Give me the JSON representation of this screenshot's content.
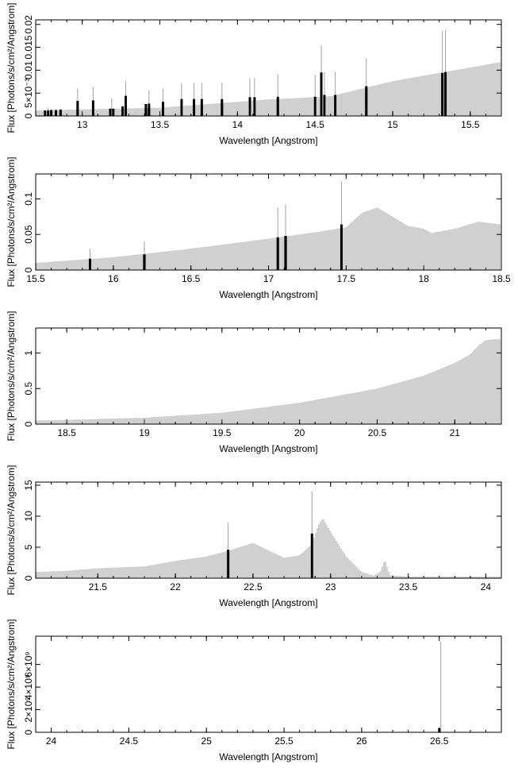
{
  "figure": {
    "style": {
      "sticks_color": "#a0a0a0",
      "lines_color": "#000000",
      "frame_color": "#000000",
      "background": "#ffffff"
    }
  },
  "chart_data": [
    {
      "type": "bar",
      "xlabel": "Wavelength [Angstrom]",
      "ylabel": "Flux [Photons/s/cm²/Angstrom]",
      "xlim": [
        12.7,
        15.7
      ],
      "ylim": [
        0,
        0.021
      ],
      "xticks": [
        "13",
        "13.5",
        "14",
        "14.5",
        "15",
        "15.5"
      ],
      "yticks": [
        "0",
        "5×10⁻³",
        "0.01",
        "0.015",
        "0.02"
      ],
      "continuum_points": [
        [
          12.7,
          0.0012
        ],
        [
          13.5,
          0.0018
        ],
        [
          14.2,
          0.0036
        ],
        [
          14.6,
          0.0043
        ],
        [
          15.0,
          0.0076
        ],
        [
          15.7,
          0.0118
        ]
      ],
      "lines": [
        [
          12.76,
          0.0012
        ],
        [
          12.78,
          0.0012
        ],
        [
          12.8,
          0.0013
        ],
        [
          12.83,
          0.0013
        ],
        [
          12.86,
          0.0014
        ],
        [
          12.97,
          0.0033
        ],
        [
          13.07,
          0.0034
        ],
        [
          13.18,
          0.0016
        ],
        [
          13.2,
          0.0016
        ],
        [
          13.26,
          0.0021
        ],
        [
          13.28,
          0.0044
        ],
        [
          13.41,
          0.0026
        ],
        [
          13.43,
          0.0027
        ],
        [
          13.52,
          0.0031
        ],
        [
          13.64,
          0.0037
        ],
        [
          13.72,
          0.0037
        ],
        [
          13.77,
          0.0037
        ],
        [
          13.9,
          0.0037
        ],
        [
          14.08,
          0.0041
        ],
        [
          14.11,
          0.0041
        ],
        [
          14.26,
          0.0042
        ],
        [
          14.5,
          0.0042
        ],
        [
          14.54,
          0.0095
        ],
        [
          14.56,
          0.0046
        ],
        [
          14.63,
          0.0046
        ],
        [
          14.83,
          0.0065
        ],
        [
          15.32,
          0.0094
        ],
        [
          15.34,
          0.0096
        ]
      ],
      "sticks": [
        [
          12.78,
          0.0018
        ],
        [
          12.97,
          0.006
        ],
        [
          13.07,
          0.0063
        ],
        [
          13.19,
          0.0038
        ],
        [
          13.28,
          0.0075
        ],
        [
          13.43,
          0.0056
        ],
        [
          13.52,
          0.006
        ],
        [
          13.64,
          0.0072
        ],
        [
          13.72,
          0.0073
        ],
        [
          13.77,
          0.0072
        ],
        [
          13.9,
          0.0073
        ],
        [
          14.08,
          0.0082
        ],
        [
          14.11,
          0.0083
        ],
        [
          14.26,
          0.0091
        ],
        [
          14.5,
          0.009
        ],
        [
          14.54,
          0.0155
        ],
        [
          14.56,
          0.0096
        ],
        [
          14.63,
          0.0097
        ],
        [
          14.83,
          0.0126
        ],
        [
          15.32,
          0.0186
        ],
        [
          15.34,
          0.0188
        ]
      ]
    },
    {
      "type": "bar",
      "xlabel": "Wavelength [Angstrom]",
      "ylabel": "Flux [Photons/s/cm²/Angstrom]",
      "xlim": [
        15.5,
        18.5
      ],
      "ylim": [
        0,
        0.135
      ],
      "xticks": [
        "15.5",
        "16",
        "16.5",
        "17",
        "17.5",
        "18",
        "18.5"
      ],
      "yticks": [
        "0",
        "0.05",
        "0.1"
      ],
      "continuum_points": [
        [
          15.5,
          0.01
        ],
        [
          16.0,
          0.018
        ],
        [
          16.5,
          0.03
        ],
        [
          17.0,
          0.044
        ],
        [
          17.3,
          0.053
        ],
        [
          17.5,
          0.06
        ],
        [
          17.6,
          0.08
        ],
        [
          17.7,
          0.088
        ],
        [
          17.8,
          0.075
        ],
        [
          17.9,
          0.062
        ],
        [
          18.0,
          0.058
        ],
        [
          18.05,
          0.052
        ],
        [
          18.2,
          0.058
        ],
        [
          18.35,
          0.068
        ],
        [
          18.5,
          0.064
        ]
      ],
      "lines": [
        [
          15.85,
          0.016
        ],
        [
          16.2,
          0.022
        ],
        [
          17.06,
          0.046
        ],
        [
          17.11,
          0.048
        ],
        [
          17.47,
          0.064
        ]
      ],
      "sticks": [
        [
          15.85,
          0.03
        ],
        [
          16.2,
          0.04
        ],
        [
          17.06,
          0.088
        ],
        [
          17.11,
          0.092
        ],
        [
          17.47,
          0.124
        ]
      ]
    },
    {
      "type": "bar",
      "xlabel": "Wavelength [Angstrom]",
      "ylabel": "Flux [Photons/s/cm²/Angstrom]",
      "xlim": [
        18.3,
        21.3
      ],
      "ylim": [
        0,
        1.35
      ],
      "xticks": [
        "18.5",
        "19",
        "19.5",
        "20",
        "20.5",
        "21"
      ],
      "yticks": [
        "0",
        "0.5",
        "1"
      ],
      "continuum_points": [
        [
          18.3,
          0.05
        ],
        [
          18.5,
          0.06
        ],
        [
          19.0,
          0.09
        ],
        [
          19.5,
          0.16
        ],
        [
          20.0,
          0.3
        ],
        [
          20.5,
          0.5
        ],
        [
          20.8,
          0.68
        ],
        [
          21.0,
          0.86
        ],
        [
          21.1,
          0.98
        ],
        [
          21.15,
          1.1
        ],
        [
          21.2,
          1.18
        ],
        [
          21.3,
          1.2
        ]
      ],
      "lines": [],
      "sticks": []
    },
    {
      "type": "bar",
      "xlabel": "Wavelength [Angstrom]",
      "ylabel": "Flux [Photons/s/cm²/Angstrom]",
      "xlim": [
        21.1,
        24.1
      ],
      "ylim": [
        0,
        15.5
      ],
      "xticks": [
        "21.5",
        "22",
        "22.5",
        "23",
        "23.5",
        "24"
      ],
      "yticks": [
        "0",
        "5",
        "10",
        "15"
      ],
      "continuum_points": [
        [
          21.1,
          1.0
        ],
        [
          21.3,
          1.2
        ],
        [
          21.5,
          1.6
        ],
        [
          21.8,
          1.9
        ],
        [
          22.0,
          2.8
        ],
        [
          22.2,
          3.5
        ],
        [
          22.35,
          4.5
        ],
        [
          22.5,
          5.7
        ],
        [
          22.6,
          4.5
        ],
        [
          22.7,
          3.3
        ],
        [
          22.8,
          3.7
        ],
        [
          22.88,
          5.5
        ],
        [
          22.92,
          8.5
        ],
        [
          22.95,
          9.7
        ],
        [
          23.0,
          7.5
        ],
        [
          23.1,
          3.5
        ],
        [
          23.2,
          1.0
        ],
        [
          23.28,
          0.4
        ],
        [
          23.32,
          1.0
        ],
        [
          23.35,
          3.0
        ],
        [
          23.38,
          0.5
        ],
        [
          23.5,
          0.25
        ],
        [
          24.1,
          0.25
        ]
      ],
      "lines": [
        [
          22.34,
          4.6
        ],
        [
          22.88,
          7.2
        ]
      ],
      "sticks": [
        [
          22.34,
          9.0
        ],
        [
          22.88,
          14.0
        ]
      ]
    },
    {
      "type": "bar",
      "xlabel": "Wavelength [Angstrom]",
      "ylabel": "Flux [Photons/s/cm²/Angstrom]",
      "xlim": [
        23.9,
        26.9
      ],
      "ylim": [
        0,
        8500000000
      ],
      "xticks": [
        "24",
        "24.5",
        "25",
        "25.5",
        "26",
        "26.5"
      ],
      "yticks": [
        "0",
        "2×10⁹",
        "4×10⁹",
        "6×10⁹"
      ],
      "continuum_points": [
        [
          23.9,
          0
        ],
        [
          26.9,
          0
        ]
      ],
      "lines": [
        [
          26.5,
          350000000
        ]
      ],
      "sticks": [
        [
          26.51,
          8000000000
        ]
      ]
    }
  ]
}
